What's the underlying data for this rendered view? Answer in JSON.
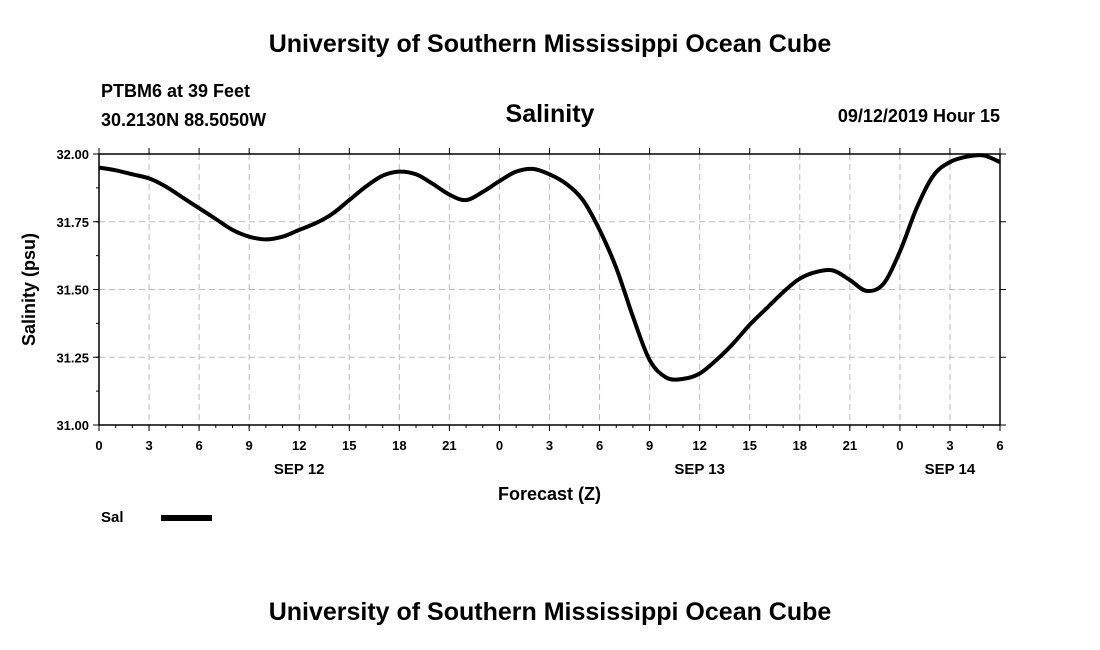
{
  "header": {
    "title": "University of Southern Mississippi Ocean Cube"
  },
  "footer": {
    "title": "University of Southern Mississippi Ocean Cube"
  },
  "station": {
    "name": "PTBM6 at 39 Feet",
    "coords": "30.2130N 88.5050W"
  },
  "timestamp": "09/12/2019 Hour 15",
  "chart_data": {
    "type": "line",
    "title": "Salinity",
    "xlabel": "Forecast (Z)",
    "ylabel": "Salinity (psu)",
    "ylim": [
      31.0,
      32.0
    ],
    "xlim": [
      0,
      54
    ],
    "x_unit": "hours from 09/12/2019 00Z",
    "y_ticks": [
      "31.00",
      "31.25",
      "31.50",
      "31.75",
      "32.00"
    ],
    "x_tick_labels": [
      "0",
      "3",
      "6",
      "9",
      "12",
      "15",
      "18",
      "21",
      "0",
      "3",
      "6",
      "9",
      "12",
      "15",
      "18",
      "21",
      "0",
      "3",
      "6"
    ],
    "date_labels": [
      {
        "hour": 12,
        "label": "SEP 12"
      },
      {
        "hour": 36,
        "label": "SEP 13"
      },
      {
        "hour": 51,
        "label": "SEP 14"
      }
    ],
    "grid": true,
    "series": [
      {
        "name": "Sal",
        "color": "#000000",
        "x": [
          0,
          1,
          2,
          3,
          4,
          5,
          6,
          7,
          8,
          9,
          10,
          11,
          12,
          13,
          14,
          15,
          16,
          17,
          18,
          19,
          20,
          21,
          22,
          23,
          24,
          25,
          26,
          27,
          28,
          29,
          30,
          31,
          32,
          33,
          34,
          35,
          36,
          37,
          38,
          39,
          40,
          41,
          42,
          43,
          44,
          45,
          46,
          47,
          48,
          49,
          50,
          51,
          52,
          53,
          54
        ],
        "values": [
          31.95,
          31.94,
          31.925,
          31.91,
          31.88,
          31.84,
          31.8,
          31.76,
          31.72,
          31.695,
          31.685,
          31.695,
          31.72,
          31.745,
          31.78,
          31.83,
          31.88,
          31.92,
          31.935,
          31.925,
          31.89,
          31.85,
          31.83,
          31.86,
          31.9,
          31.935,
          31.945,
          31.925,
          31.89,
          31.83,
          31.72,
          31.58,
          31.4,
          31.24,
          31.175,
          31.17,
          31.19,
          31.24,
          31.3,
          31.37,
          31.43,
          31.49,
          31.54,
          31.565,
          31.57,
          31.535,
          31.495,
          31.52,
          31.64,
          31.8,
          31.92,
          31.97,
          31.99,
          31.995,
          31.97
        ]
      }
    ]
  },
  "legend": {
    "label": "Sal"
  }
}
